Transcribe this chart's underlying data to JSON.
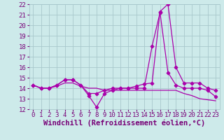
{
  "xlabel": "Windchill (Refroidissement éolien,°C)",
  "xlim": [
    -0.5,
    23.5
  ],
  "ylim": [
    12,
    22
  ],
  "yticks": [
    12,
    13,
    14,
    15,
    16,
    17,
    18,
    19,
    20,
    21,
    22
  ],
  "xticks": [
    0,
    1,
    2,
    3,
    4,
    5,
    6,
    7,
    8,
    9,
    10,
    11,
    12,
    13,
    14,
    15,
    16,
    17,
    18,
    19,
    20,
    21,
    22,
    23
  ],
  "bg_color": "#cdeaea",
  "grid_color": "#a8c8cc",
  "line_color": "#aa00aa",
  "series1_x": [
    0,
    1,
    2,
    3,
    4,
    5,
    6,
    7,
    8,
    9,
    10,
    11,
    12,
    13,
    14,
    15,
    16,
    17,
    18,
    19,
    20,
    21,
    22,
    23
  ],
  "series1_y": [
    14.3,
    14.0,
    14.0,
    14.3,
    14.8,
    14.8,
    14.3,
    13.3,
    12.2,
    13.5,
    13.8,
    14.0,
    14.0,
    14.2,
    14.4,
    14.5,
    21.3,
    22.0,
    16.0,
    14.5,
    14.5,
    14.5,
    14.0,
    13.8
  ],
  "series2_x": [
    0,
    1,
    2,
    3,
    4,
    5,
    6,
    7,
    8,
    9,
    10,
    11,
    12,
    13,
    14,
    15,
    16,
    17,
    18,
    19,
    20,
    21,
    22,
    23
  ],
  "series2_y": [
    14.3,
    14.0,
    14.0,
    14.3,
    14.8,
    14.8,
    14.3,
    13.5,
    13.5,
    13.8,
    14.0,
    14.0,
    14.0,
    14.0,
    14.0,
    18.0,
    21.2,
    15.5,
    14.3,
    14.0,
    14.0,
    14.0,
    13.8,
    13.2
  ],
  "series3_x": [
    0,
    1,
    2,
    3,
    4,
    5,
    6,
    7,
    8,
    9,
    10,
    11,
    12,
    13,
    14,
    15,
    16,
    17,
    18,
    19,
    20,
    21,
    22,
    23
  ],
  "series3_y": [
    14.3,
    14.0,
    14.0,
    14.2,
    14.5,
    14.5,
    14.2,
    14.0,
    14.0,
    13.8,
    13.8,
    13.8,
    13.8,
    13.8,
    13.8,
    13.8,
    13.8,
    13.8,
    13.8,
    13.5,
    13.3,
    13.0,
    12.9,
    12.8
  ],
  "font_color": "#770077",
  "tick_fontsize": 6.5,
  "xlabel_fontsize": 7.5
}
